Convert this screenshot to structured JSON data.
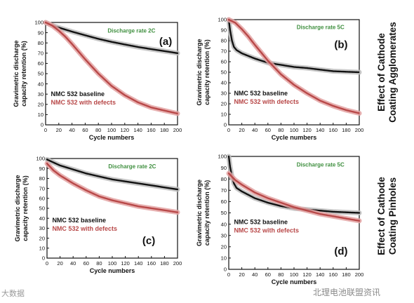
{
  "side_labels": {
    "agglomerates": [
      "Effect of Cathode",
      "Coating Agglomerates"
    ],
    "pinholes": [
      "Effect of Cathode",
      "Coating Pinholes"
    ]
  },
  "watermarks": {
    "left": "大数据",
    "right": "北理电池联盟资讯"
  },
  "colors": {
    "baseline": "#111111",
    "defects": "#b84848",
    "baseline_band": "#bdbdbd",
    "defects_band": "#e3a2a2",
    "rate_text": "#3f8f3f"
  },
  "chart_data": [
    {
      "panel": "(a)",
      "type": "line",
      "annotation": "Discharge rate 2C",
      "xlabel": "Cycle numbers",
      "ylabel": [
        "Gravimetric discharge",
        "capacity retention (%)"
      ],
      "xlim": [
        0,
        200
      ],
      "ylim": [
        0,
        100
      ],
      "xticks": [
        0,
        20,
        40,
        60,
        80,
        100,
        120,
        140,
        160,
        180,
        200
      ],
      "yticks": [
        0,
        10,
        20,
        30,
        40,
        50,
        60,
        70,
        80,
        90,
        100
      ],
      "legend": [
        "NMC  532 baseline",
        "NMC  532 with defects"
      ],
      "series": [
        {
          "name": "NMC  532 baseline",
          "x": [
            0,
            10,
            20,
            40,
            60,
            80,
            100,
            120,
            140,
            160,
            180,
            200
          ],
          "y": [
            100,
            97,
            95,
            91,
            87.5,
            84,
            81,
            78.5,
            76,
            74,
            72,
            70
          ]
        },
        {
          "name": "NMC  532 with defects",
          "x": [
            0,
            10,
            20,
            30,
            40,
            60,
            80,
            100,
            120,
            140,
            160,
            180,
            200
          ],
          "y": [
            100,
            97,
            92,
            86,
            79,
            64,
            50,
            38,
            29,
            22,
            17,
            14,
            11
          ]
        }
      ]
    },
    {
      "panel": "(b)",
      "type": "line",
      "annotation": "Discharge rate 5C",
      "xlabel": "Cycle numbers",
      "ylabel": [
        "Gravimetric discharge",
        "capacity retention (%)"
      ],
      "xlim": [
        0,
        200
      ],
      "ylim": [
        0,
        100
      ],
      "xticks": [
        0,
        20,
        40,
        60,
        80,
        100,
        120,
        140,
        160,
        180,
        200
      ],
      "yticks": [
        0,
        10,
        20,
        30,
        40,
        50,
        60,
        70,
        80,
        90,
        100
      ],
      "legend": [
        "NMC  532 baseline",
        "NMC  532 with defects"
      ],
      "series": [
        {
          "name": "NMC  532 baseline",
          "x": [
            0,
            2,
            5,
            8,
            12,
            20,
            40,
            60,
            80,
            100,
            120,
            140,
            160,
            180,
            200
          ],
          "y": [
            100,
            90,
            80,
            74,
            71,
            68,
            63,
            59,
            57,
            55,
            54,
            52.5,
            51,
            50.5,
            50
          ]
        },
        {
          "name": "NMC  532 with defects",
          "x": [
            0,
            10,
            20,
            30,
            40,
            60,
            80,
            100,
            120,
            140,
            160,
            180,
            200
          ],
          "y": [
            100,
            97,
            91,
            84,
            76,
            61,
            48,
            38,
            30,
            23,
            18,
            14,
            11
          ]
        }
      ]
    },
    {
      "panel": "(c)",
      "type": "line",
      "annotation": "Discharge rate 2C",
      "xlabel": "Cycle numbers",
      "ylabel": [
        "Gravimetric discharge",
        "capacity retention (%)"
      ],
      "xlim": [
        0,
        200
      ],
      "ylim": [
        0,
        100
      ],
      "xticks": [
        0,
        20,
        40,
        60,
        80,
        100,
        120,
        140,
        160,
        180,
        200
      ],
      "yticks": [
        0,
        10,
        20,
        30,
        40,
        50,
        60,
        70,
        80,
        90,
        100
      ],
      "legend": [
        "NMC  532 baseline",
        "NMC  532 with defects"
      ],
      "series": [
        {
          "name": "NMC  532 baseline",
          "x": [
            0,
            10,
            20,
            40,
            60,
            80,
            100,
            120,
            140,
            160,
            180,
            200
          ],
          "y": [
            99,
            96,
            93,
            89,
            85,
            82,
            79,
            77,
            75,
            73,
            71,
            69
          ]
        },
        {
          "name": "NMC  532 with defects",
          "x": [
            0,
            10,
            20,
            40,
            60,
            80,
            100,
            120,
            140,
            160,
            180,
            200
          ],
          "y": [
            95,
            88,
            83,
            75,
            68,
            62,
            58,
            55,
            52,
            50,
            48,
            46
          ]
        }
      ]
    },
    {
      "panel": "(d)",
      "type": "line",
      "annotation": "Discharge rate 5C",
      "xlabel": "Cycle numbers",
      "ylabel": [
        "Gravimetric discharge",
        "capacity retention (%)"
      ],
      "xlim": [
        0,
        200
      ],
      "ylim": [
        0,
        100
      ],
      "xticks": [
        0,
        20,
        40,
        60,
        80,
        100,
        120,
        140,
        160,
        180,
        200
      ],
      "yticks": [
        0,
        10,
        20,
        30,
        40,
        50,
        60,
        70,
        80,
        90,
        100
      ],
      "legend": [
        "NMC  532 baseline",
        "NMC  532 with defects"
      ],
      "series": [
        {
          "name": "NMC  532 baseline",
          "x": [
            0,
            2,
            5,
            8,
            12,
            20,
            40,
            60,
            80,
            100,
            120,
            140,
            160,
            180,
            200
          ],
          "y": [
            100,
            91,
            82,
            76,
            72,
            69,
            63,
            59,
            56,
            54,
            53,
            52,
            51,
            50.5,
            50
          ]
        },
        {
          "name": "NMC  532 with defects",
          "x": [
            0,
            5,
            10,
            20,
            40,
            60,
            80,
            100,
            120,
            140,
            160,
            180,
            200
          ],
          "y": [
            85,
            82,
            79,
            75,
            68,
            63,
            59,
            55,
            52,
            49,
            47,
            45,
            43
          ]
        }
      ]
    }
  ]
}
